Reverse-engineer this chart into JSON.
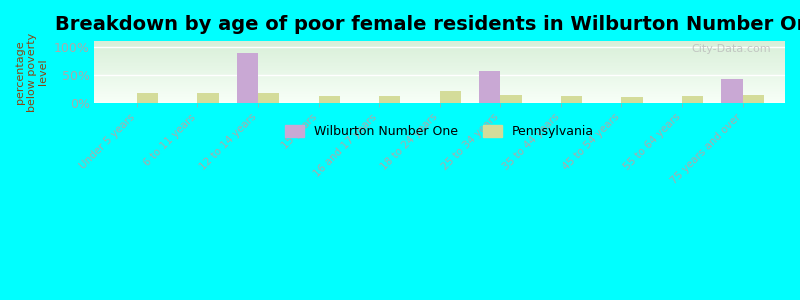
{
  "title": "Breakdown by age of poor female residents in Wilburton Number One",
  "categories": [
    "Under 5 years",
    "6 to 11 years",
    "12 to 14 years",
    "15 years",
    "16 and 17 years",
    "18 to 24 years",
    "25 to 34 years",
    "35 to 44 years",
    "45 to 54 years",
    "55 to 64 years",
    "75 years and over"
  ],
  "wilburton_values": [
    0,
    0,
    88,
    0,
    0,
    0,
    57,
    0,
    0,
    0,
    42
  ],
  "pennsylvania_values": [
    18,
    18,
    18,
    13,
    12,
    22,
    15,
    13,
    10,
    13,
    15
  ],
  "wilburton_color": "#c9a8d4",
  "pennsylvania_color": "#d4dc9a",
  "ylabel": "percentage\nbelow poverty\nlevel",
  "ylim": [
    0,
    110
  ],
  "yticks": [
    0,
    50,
    100
  ],
  "ytick_labels": [
    "0%",
    "50%",
    "100%"
  ],
  "background_color": "#00ffff",
  "plot_bg_top": "#d8efd8",
  "plot_bg_bottom": "#f8fff8",
  "title_fontsize": 14,
  "legend_wilburton": "Wilburton Number One",
  "legend_pennsylvania": "Pennsylvania",
  "bar_width": 0.35,
  "watermark": "City-Data.com"
}
